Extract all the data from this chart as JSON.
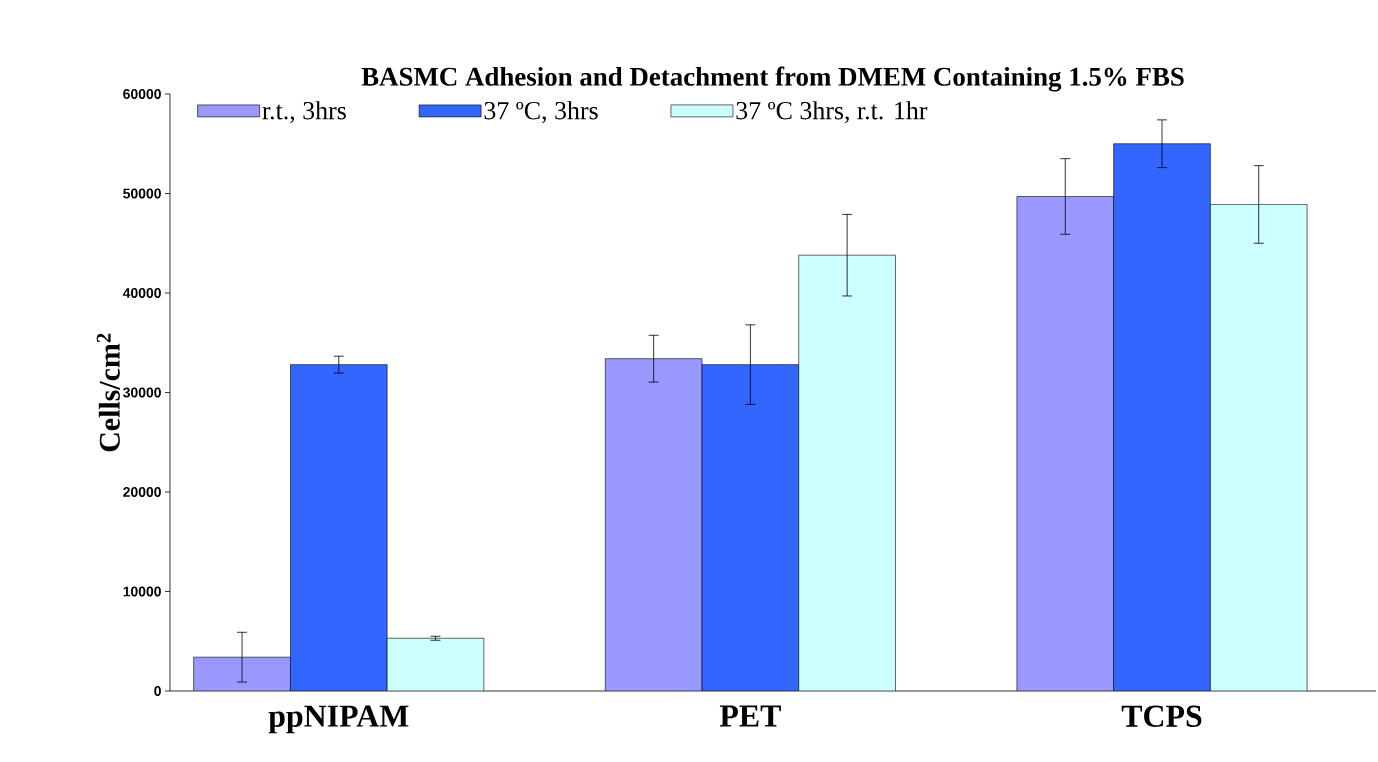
{
  "chart_data": {
    "type": "bar",
    "title": "BASMC Adhesion and Detachment from DMEM Containing 1.5% FBS",
    "ylabel": "Cells/cm$^{2}$",
    "categories": [
      "ppNIPAM",
      "PET",
      "TCPS"
    ],
    "series": [
      {
        "name": "r.t., 3hrs",
        "color": "#9999ff",
        "values": [
          3400,
          33400,
          49700
        ],
        "errors": [
          2500,
          2350,
          3800
        ]
      },
      {
        "name": "37 ºC, 3hrs",
        "color": "#3366ff",
        "values": [
          32800,
          32800,
          55000
        ],
        "errors": [
          850,
          4000,
          2400
        ]
      },
      {
        "name": "37 ºC 3hrs,  r.t. 1hr",
        "color": "#ccffff",
        "values": [
          5300,
          43800,
          48900
        ],
        "errors": [
          200,
          4100,
          3900
        ]
      }
    ],
    "ylim": [
      0,
      60000
    ],
    "yticks": [
      0,
      10000,
      20000,
      30000,
      40000,
      50000,
      60000
    ],
    "grid": false,
    "legend": "top"
  }
}
